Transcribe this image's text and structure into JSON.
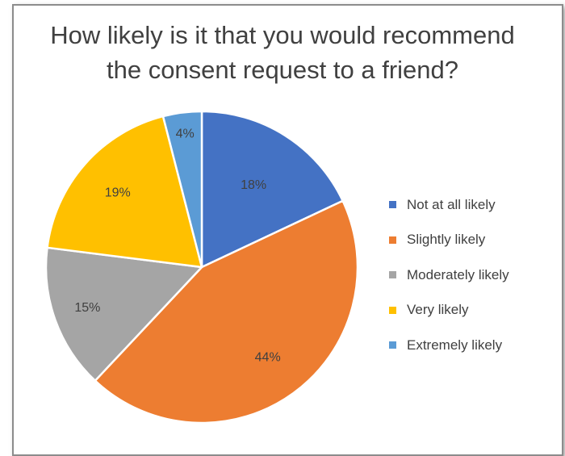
{
  "chart_data": {
    "type": "pie",
    "title_lines": [
      "How likely is it that you would recommend",
      "the consent request to a friend?"
    ],
    "categories": [
      "Not at all likely",
      "Slightly likely",
      "Moderately likely",
      "Very likely",
      "Extremely likely"
    ],
    "values": [
      18,
      44,
      15,
      19,
      4
    ],
    "data_labels": [
      "18%",
      "44%",
      "15%",
      "19%",
      "4%"
    ],
    "colors": [
      "#4472c4",
      "#ed7d31",
      "#a5a5a5",
      "#ffc000",
      "#5b9bd5"
    ],
    "start_angle_deg": 0,
    "direction": "clockwise",
    "legend_position": "right"
  }
}
